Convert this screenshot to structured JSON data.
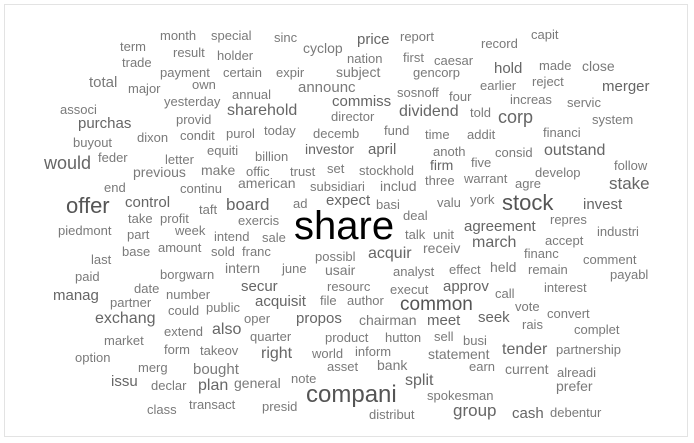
{
  "words": [
    {
      "t": "month",
      "c": "#7a7a7a"
    },
    {
      "t": "special",
      "c": "#7a7a7a"
    },
    {
      "t": "sinc",
      "c": "#7a7a7a"
    },
    {
      "t": "price",
      "c": "#666666"
    },
    {
      "t": "report",
      "c": "#7a7a7a"
    },
    {
      "t": "record",
      "c": "#7a7a7a"
    },
    {
      "t": "capit",
      "c": "#7a7a7a"
    },
    {
      "t": "term",
      "c": "#7a7a7a"
    },
    {
      "t": "result",
      "c": "#7a7a7a"
    },
    {
      "t": "holder",
      "c": "#7a7a7a"
    },
    {
      "t": "cyclop",
      "c": "#7a7a7a"
    },
    {
      "t": "nation",
      "c": "#7a7a7a"
    },
    {
      "t": "first",
      "c": "#7a7a7a"
    },
    {
      "t": "caesar",
      "c": "#7a7a7a"
    },
    {
      "t": "trade",
      "c": "#7a7a7a"
    },
    {
      "t": "payment",
      "c": "#7a7a7a"
    },
    {
      "t": "certain",
      "c": "#7a7a7a"
    },
    {
      "t": "expir",
      "c": "#7a7a7a"
    },
    {
      "t": "subject",
      "c": "#7a7a7a"
    },
    {
      "t": "gencorp",
      "c": "#7a7a7a"
    },
    {
      "t": "hold",
      "c": "#666666"
    },
    {
      "t": "made",
      "c": "#7a7a7a"
    },
    {
      "t": "close",
      "c": "#7a7a7a"
    },
    {
      "t": "total",
      "c": "#7a7a7a"
    },
    {
      "t": "major",
      "c": "#7a7a7a"
    },
    {
      "t": "own",
      "c": "#7a7a7a"
    },
    {
      "t": "announc",
      "c": "#7a7a7a"
    },
    {
      "t": "earlier",
      "c": "#7a7a7a"
    },
    {
      "t": "reject",
      "c": "#7a7a7a"
    },
    {
      "t": "merger",
      "c": "#666666"
    },
    {
      "t": "yesterday",
      "c": "#7a7a7a"
    },
    {
      "t": "annual",
      "c": "#7a7a7a"
    },
    {
      "t": "commiss",
      "c": "#666666"
    },
    {
      "t": "sosnoff",
      "c": "#7a7a7a"
    },
    {
      "t": "four",
      "c": "#7a7a7a"
    },
    {
      "t": "increas",
      "c": "#7a7a7a"
    },
    {
      "t": "servic",
      "c": "#7a7a7a"
    },
    {
      "t": "associ",
      "c": "#7a7a7a"
    },
    {
      "t": "sharehold",
      "c": "#666666"
    },
    {
      "t": "director",
      "c": "#7a7a7a"
    },
    {
      "t": "dividend",
      "c": "#666666"
    },
    {
      "t": "told",
      "c": "#7a7a7a"
    },
    {
      "t": "corp",
      "c": "#666666"
    },
    {
      "t": "system",
      "c": "#7a7a7a"
    },
    {
      "t": "purchas",
      "c": "#666666"
    },
    {
      "t": "provid",
      "c": "#7a7a7a"
    },
    {
      "t": "today",
      "c": "#7a7a7a"
    },
    {
      "t": "fund",
      "c": "#7a7a7a"
    },
    {
      "t": "addit",
      "c": "#7a7a7a"
    },
    {
      "t": "financi",
      "c": "#7a7a7a"
    },
    {
      "t": "dixon",
      "c": "#7a7a7a"
    },
    {
      "t": "condit",
      "c": "#7a7a7a"
    },
    {
      "t": "purol",
      "c": "#7a7a7a"
    },
    {
      "t": "decemb",
      "c": "#7a7a7a"
    },
    {
      "t": "time",
      "c": "#7a7a7a"
    },
    {
      "t": "buyout",
      "c": "#7a7a7a"
    },
    {
      "t": "equiti",
      "c": "#7a7a7a"
    },
    {
      "t": "investor",
      "c": "#666666"
    },
    {
      "t": "april",
      "c": "#666666"
    },
    {
      "t": "anoth",
      "c": "#7a7a7a"
    },
    {
      "t": "consid",
      "c": "#7a7a7a"
    },
    {
      "t": "outstand",
      "c": "#666666"
    },
    {
      "t": "feder",
      "c": "#7a7a7a"
    },
    {
      "t": "letter",
      "c": "#7a7a7a"
    },
    {
      "t": "billion",
      "c": "#7a7a7a"
    },
    {
      "t": "firm",
      "c": "#666666"
    },
    {
      "t": "five",
      "c": "#7a7a7a"
    },
    {
      "t": "would",
      "c": "#666666"
    },
    {
      "t": "make",
      "c": "#7a7a7a"
    },
    {
      "t": "offic",
      "c": "#7a7a7a"
    },
    {
      "t": "trust",
      "c": "#7a7a7a"
    },
    {
      "t": "set",
      "c": "#7a7a7a"
    },
    {
      "t": "stockhold",
      "c": "#7a7a7a"
    },
    {
      "t": "develop",
      "c": "#7a7a7a"
    },
    {
      "t": "follow",
      "c": "#7a7a7a"
    },
    {
      "t": "previous",
      "c": "#7a7a7a"
    },
    {
      "t": "american",
      "c": "#7a7a7a"
    },
    {
      "t": "three",
      "c": "#7a7a7a"
    },
    {
      "t": "warrant",
      "c": "#7a7a7a"
    },
    {
      "t": "agre",
      "c": "#7a7a7a"
    },
    {
      "t": "stake",
      "c": "#666666"
    },
    {
      "t": "end",
      "c": "#7a7a7a"
    },
    {
      "t": "continu",
      "c": "#7a7a7a"
    },
    {
      "t": "subsidiari",
      "c": "#7a7a7a"
    },
    {
      "t": "includ",
      "c": "#7a7a7a"
    },
    {
      "t": "york",
      "c": "#7a7a7a"
    },
    {
      "t": "offer",
      "c": "#555555"
    },
    {
      "t": "control",
      "c": "#666666"
    },
    {
      "t": "board",
      "c": "#666666"
    },
    {
      "t": "ad",
      "c": "#7a7a7a"
    },
    {
      "t": "expect",
      "c": "#666666"
    },
    {
      "t": "basi",
      "c": "#7a7a7a"
    },
    {
      "t": "valu",
      "c": "#7a7a7a"
    },
    {
      "t": "stock",
      "c": "#555555"
    },
    {
      "t": "invest",
      "c": "#666666"
    },
    {
      "t": "taft",
      "c": "#7a7a7a"
    },
    {
      "t": "deal",
      "c": "#7a7a7a"
    },
    {
      "t": "take",
      "c": "#7a7a7a"
    },
    {
      "t": "profit",
      "c": "#7a7a7a"
    },
    {
      "t": "exercis",
      "c": "#7a7a7a"
    },
    {
      "t": "share",
      "c": "#000000"
    },
    {
      "t": "repres",
      "c": "#7a7a7a"
    },
    {
      "t": "piedmont",
      "c": "#7a7a7a"
    },
    {
      "t": "part",
      "c": "#7a7a7a"
    },
    {
      "t": "week",
      "c": "#7a7a7a"
    },
    {
      "t": "intend",
      "c": "#7a7a7a"
    },
    {
      "t": "sale",
      "c": "#7a7a7a"
    },
    {
      "t": "talk",
      "c": "#7a7a7a"
    },
    {
      "t": "unit",
      "c": "#7a7a7a"
    },
    {
      "t": "agreement",
      "c": "#666666"
    },
    {
      "t": "industri",
      "c": "#7a7a7a"
    },
    {
      "t": "base",
      "c": "#7a7a7a"
    },
    {
      "t": "amount",
      "c": "#7a7a7a"
    },
    {
      "t": "sold",
      "c": "#7a7a7a"
    },
    {
      "t": "franc",
      "c": "#7a7a7a"
    },
    {
      "t": "receiv",
      "c": "#7a7a7a"
    },
    {
      "t": "march",
      "c": "#666666"
    },
    {
      "t": "accept",
      "c": "#7a7a7a"
    },
    {
      "t": "last",
      "c": "#7a7a7a"
    },
    {
      "t": "possibl",
      "c": "#7a7a7a"
    },
    {
      "t": "acquir",
      "c": "#666666"
    },
    {
      "t": "financ",
      "c": "#7a7a7a"
    },
    {
      "t": "comment",
      "c": "#7a7a7a"
    },
    {
      "t": "paid",
      "c": "#7a7a7a"
    },
    {
      "t": "intern",
      "c": "#7a7a7a"
    },
    {
      "t": "june",
      "c": "#7a7a7a"
    },
    {
      "t": "usair",
      "c": "#7a7a7a"
    },
    {
      "t": "analyst",
      "c": "#7a7a7a"
    },
    {
      "t": "effect",
      "c": "#7a7a7a"
    },
    {
      "t": "held",
      "c": "#7a7a7a"
    },
    {
      "t": "remain",
      "c": "#7a7a7a"
    },
    {
      "t": "payabl",
      "c": "#7a7a7a"
    },
    {
      "t": "borgwarn",
      "c": "#7a7a7a"
    },
    {
      "t": "date",
      "c": "#7a7a7a"
    },
    {
      "t": "secur",
      "c": "#666666"
    },
    {
      "t": "resourc",
      "c": "#7a7a7a"
    },
    {
      "t": "approv",
      "c": "#666666"
    },
    {
      "t": "interest",
      "c": "#7a7a7a"
    },
    {
      "t": "manag",
      "c": "#666666"
    },
    {
      "t": "number",
      "c": "#7a7a7a"
    },
    {
      "t": "execut",
      "c": "#7a7a7a"
    },
    {
      "t": "call",
      "c": "#7a7a7a"
    },
    {
      "t": "partner",
      "c": "#7a7a7a"
    },
    {
      "t": "acquisit",
      "c": "#666666"
    },
    {
      "t": "file",
      "c": "#7a7a7a"
    },
    {
      "t": "author",
      "c": "#7a7a7a"
    },
    {
      "t": "common",
      "c": "#555555"
    },
    {
      "t": "vote",
      "c": "#7a7a7a"
    },
    {
      "t": "convert",
      "c": "#7a7a7a"
    },
    {
      "t": "could",
      "c": "#7a7a7a"
    },
    {
      "t": "public",
      "c": "#7a7a7a"
    },
    {
      "t": "propos",
      "c": "#666666"
    },
    {
      "t": "seek",
      "c": "#666666"
    },
    {
      "t": "exchang",
      "c": "#666666"
    },
    {
      "t": "oper",
      "c": "#7a7a7a"
    },
    {
      "t": "chairman",
      "c": "#7a7a7a"
    },
    {
      "t": "meet",
      "c": "#666666"
    },
    {
      "t": "rais",
      "c": "#7a7a7a"
    },
    {
      "t": "complet",
      "c": "#7a7a7a"
    },
    {
      "t": "extend",
      "c": "#7a7a7a"
    },
    {
      "t": "also",
      "c": "#666666"
    },
    {
      "t": "quarter",
      "c": "#7a7a7a"
    },
    {
      "t": "product",
      "c": "#7a7a7a"
    },
    {
      "t": "hutton",
      "c": "#7a7a7a"
    },
    {
      "t": "sell",
      "c": "#7a7a7a"
    },
    {
      "t": "busi",
      "c": "#7a7a7a"
    },
    {
      "t": "market",
      "c": "#7a7a7a"
    },
    {
      "t": "form",
      "c": "#7a7a7a"
    },
    {
      "t": "takeov",
      "c": "#7a7a7a"
    },
    {
      "t": "right",
      "c": "#666666"
    },
    {
      "t": "world",
      "c": "#7a7a7a"
    },
    {
      "t": "inform",
      "c": "#7a7a7a"
    },
    {
      "t": "statement",
      "c": "#7a7a7a"
    },
    {
      "t": "tender",
      "c": "#666666"
    },
    {
      "t": "partnership",
      "c": "#7a7a7a"
    },
    {
      "t": "option",
      "c": "#7a7a7a"
    },
    {
      "t": "merg",
      "c": "#7a7a7a"
    },
    {
      "t": "bought",
      "c": "#7a7a7a"
    },
    {
      "t": "asset",
      "c": "#7a7a7a"
    },
    {
      "t": "bank",
      "c": "#7a7a7a"
    },
    {
      "t": "earn",
      "c": "#7a7a7a"
    },
    {
      "t": "current",
      "c": "#7a7a7a"
    },
    {
      "t": "alreadi",
      "c": "#7a7a7a"
    },
    {
      "t": "issu",
      "c": "#666666"
    },
    {
      "t": "declar",
      "c": "#7a7a7a"
    },
    {
      "t": "plan",
      "c": "#666666"
    },
    {
      "t": "general",
      "c": "#7a7a7a"
    },
    {
      "t": "note",
      "c": "#7a7a7a"
    },
    {
      "t": "split",
      "c": "#666666"
    },
    {
      "t": "prefer",
      "c": "#7a7a7a"
    },
    {
      "t": "compani",
      "c": "#555555"
    },
    {
      "t": "spokesman",
      "c": "#7a7a7a"
    },
    {
      "t": "class",
      "c": "#7a7a7a"
    },
    {
      "t": "transact",
      "c": "#7a7a7a"
    },
    {
      "t": "presid",
      "c": "#7a7a7a"
    },
    {
      "t": "distribut",
      "c": "#7a7a7a"
    },
    {
      "t": "group",
      "c": "#666666"
    },
    {
      "t": "cash",
      "c": "#666666"
    },
    {
      "t": "debentur",
      "c": "#7a7a7a"
    }
  ]
}
